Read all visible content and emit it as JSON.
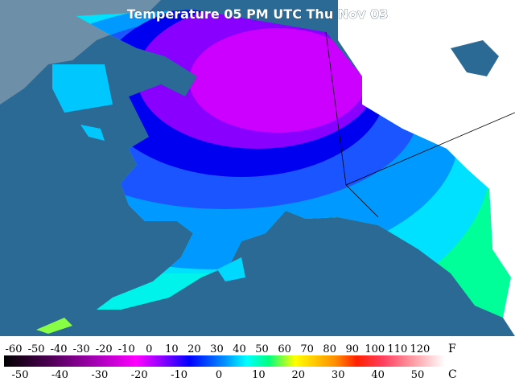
{
  "title": "Temperature 05 PM UTC Thu Nov 03",
  "legend": {
    "fahrenheit": {
      "unit": "F",
      "ticks": [
        -60,
        -50,
        -40,
        -30,
        -20,
        -10,
        0,
        10,
        20,
        30,
        40,
        50,
        60,
        70,
        80,
        90,
        100,
        110,
        120
      ]
    },
    "celsius": {
      "unit": "C",
      "ticks": [
        -50,
        -40,
        -30,
        -20,
        -10,
        0,
        10,
        20,
        30,
        40,
        50
      ]
    }
  }
}
